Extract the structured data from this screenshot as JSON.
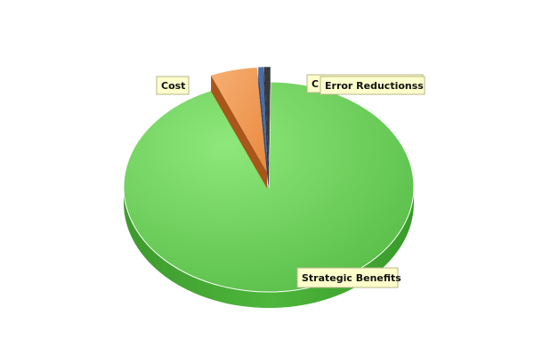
{
  "chart_data": {
    "type": "pie",
    "title": "",
    "slices": [
      {
        "label": "Strategic Benefits",
        "value": 93.5,
        "color": "#5cc44a",
        "exploded": false
      },
      {
        "label": "Cost",
        "value": 5.2,
        "color": "#f0974d",
        "exploded": true
      },
      {
        "label": "Error Reduction",
        "value": 0.7,
        "color": "#3a3a3a",
        "exploded": true
      },
      {
        "label": "C",
        "value": 0.6,
        "color": "#4a6fa5",
        "exploded": true
      }
    ],
    "overlapped_label_text": "Error Reductionss",
    "render_3d": true,
    "legend": "none"
  }
}
